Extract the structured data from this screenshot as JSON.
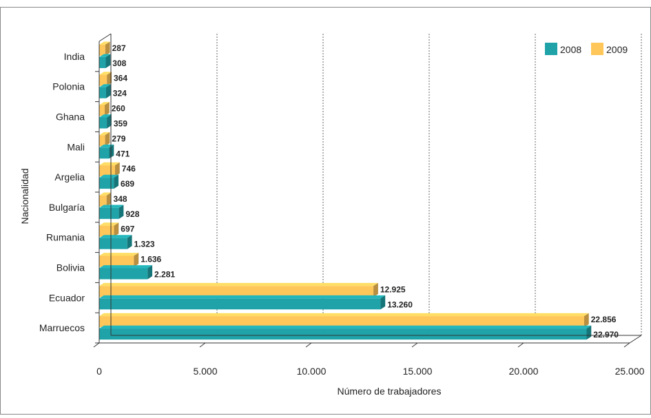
{
  "chart_data": {
    "type": "bar",
    "orientation": "horizontal",
    "title": "",
    "xlabel": "Número de trabajadores",
    "ylabel": "Nacionalidad",
    "xlim": [
      0,
      25000
    ],
    "x_ticks": [
      "0",
      "5.000",
      "10.000",
      "15.000",
      "20.000",
      "25.000"
    ],
    "x_tick_values": [
      0,
      5000,
      10000,
      15000,
      20000,
      25000
    ],
    "grid": "vertical dashed",
    "legend_position": "top-right",
    "categories": [
      "India",
      "Polonia",
      "Ghana",
      "Mali",
      "Argelia",
      "Bulgaría",
      "Rumania",
      "Bolivia",
      "Ecuador",
      "Marruecos"
    ],
    "series": [
      {
        "name": "2008",
        "color": "#1fa3a8",
        "values": [
          308,
          324,
          359,
          471,
          689,
          928,
          1323,
          2281,
          13260,
          22970
        ],
        "labels": [
          "308",
          "324",
          "359",
          "471",
          "689",
          "928",
          "1.323",
          "2.281",
          "13.260",
          "22.970"
        ]
      },
      {
        "name": "2009",
        "color": "#ffc65a",
        "values": [
          287,
          364,
          260,
          279,
          746,
          348,
          697,
          1636,
          12925,
          22856
        ],
        "labels": [
          "287",
          "364",
          "260",
          "279",
          "746",
          "348",
          "697",
          "1.636",
          "12.925",
          "22.856"
        ]
      }
    ]
  }
}
